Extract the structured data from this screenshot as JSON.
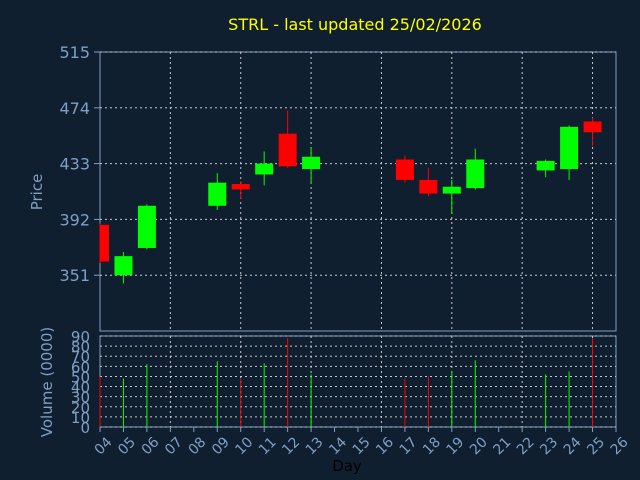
{
  "chart_data": {
    "type": "candlestick",
    "title": "STRL - last updated 25/02/2026",
    "ylabel": "Price",
    "volume_ylabel": "Volume (0000)",
    "xlabel": "Day",
    "ylim": [
      310,
      515
    ],
    "volume_ylim": [
      0,
      90
    ],
    "y_ticks": [
      "515",
      "474",
      "433",
      "392",
      "351"
    ],
    "y_tick_values": [
      515,
      474,
      433,
      392,
      351
    ],
    "volume_ticks": [
      "90",
      "80",
      "70",
      "60",
      "50",
      "40",
      "30",
      "20",
      "10",
      "0"
    ],
    "volume_tick_values": [
      90,
      80,
      70,
      60,
      50,
      40,
      30,
      20,
      10,
      0
    ],
    "x_ticks": [
      "04",
      "05",
      "06",
      "07",
      "08",
      "09",
      "10",
      "11",
      "12",
      "13",
      "14",
      "15",
      "16",
      "17",
      "18",
      "19",
      "20",
      "21",
      "22",
      "23",
      "24",
      "25",
      "26"
    ],
    "grid": true,
    "colors": {
      "up": "#00ff00",
      "down": "#ff0000",
      "background": "#0f1f30",
      "axis": "#7f9fc4",
      "title": "#ffff00"
    },
    "candles": [
      {
        "day": "04",
        "open": 388,
        "close": 361,
        "high": 389,
        "low": 360,
        "volume": 50
      },
      {
        "day": "05",
        "open": 351,
        "close": 365,
        "high": 368,
        "low": 345,
        "volume": 48
      },
      {
        "day": "06",
        "open": 371,
        "close": 402,
        "high": 403,
        "low": 370,
        "volume": 62
      },
      {
        "day": "09",
        "open": 402,
        "close": 419,
        "high": 426,
        "low": 399,
        "volume": 65
      },
      {
        "day": "10",
        "open": 418,
        "close": 414,
        "high": 420,
        "low": 407,
        "volume": 48
      },
      {
        "day": "11",
        "open": 425,
        "close": 433,
        "high": 442,
        "low": 417,
        "volume": 63
      },
      {
        "day": "12",
        "open": 455,
        "close": 431,
        "high": 472,
        "low": 430,
        "volume": 88
      },
      {
        "day": "13",
        "open": 429,
        "close": 438,
        "high": 445,
        "low": 418,
        "volume": 52
      },
      {
        "day": "17",
        "open": 436,
        "close": 421,
        "high": 439,
        "low": 419,
        "volume": 48
      },
      {
        "day": "18",
        "open": 421,
        "close": 411,
        "high": 430,
        "low": 409,
        "volume": 50
      },
      {
        "day": "19",
        "open": 411,
        "close": 416,
        "high": 421,
        "low": 396,
        "volume": 55
      },
      {
        "day": "20",
        "open": 415,
        "close": 436,
        "high": 444,
        "low": 414,
        "volume": 66
      },
      {
        "day": "23",
        "open": 428,
        "close": 435,
        "high": 436,
        "low": 423,
        "volume": 52
      },
      {
        "day": "24",
        "open": 429,
        "close": 460,
        "high": 461,
        "low": 421,
        "volume": 55
      },
      {
        "day": "25",
        "open": 464,
        "close": 456,
        "high": 467,
        "low": 446,
        "volume": 88
      }
    ]
  }
}
